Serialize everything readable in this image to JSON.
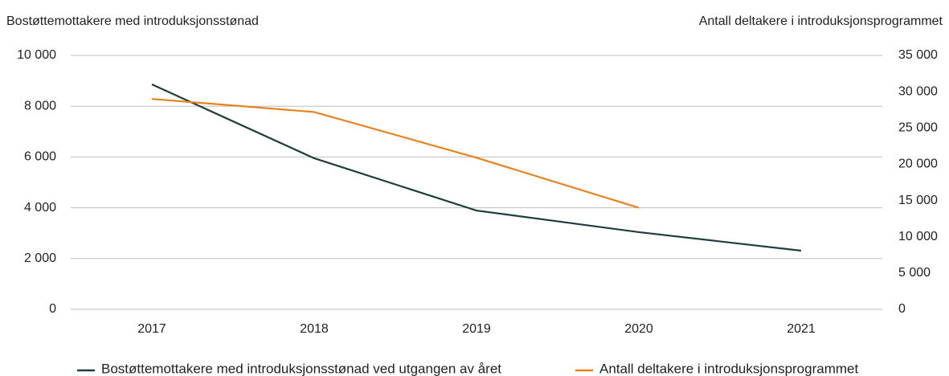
{
  "chart_data": {
    "type": "line",
    "y_label": "Bostøttemottakere med introduksjonsstønad",
    "y2_label": "Antall deltakere i introduksjonsprogrammet",
    "categories": [
      "2017",
      "2018",
      "2019",
      "2020",
      "2021"
    ],
    "series": [
      {
        "name": "Bostøttemottakere med introduksjonsstønad ved utgangen av året",
        "color": "#1e3f3b",
        "values": [
          8860,
          5950,
          3890,
          3040,
          2310
        ]
      },
      {
        "name": "Antall deltakere i introduksjonsprogrammet",
        "color": "#e8821e",
        "axis": "y2",
        "values": [
          29000,
          27200,
          20900,
          14000,
          null
        ]
      }
    ],
    "ylim": [
      0,
      10000
    ],
    "yticks": [
      0,
      {
        "value": 2000,
        "label": "2 000"
      },
      {
        "value": 4000,
        "label": "4 000"
      },
      {
        "value": 6000,
        "label": "6 000"
      },
      {
        "value": 8000,
        "label": "8 000"
      },
      {
        "value": 10000,
        "label": "10 000"
      }
    ],
    "y2lim": [
      0,
      35000
    ],
    "y2ticks": [
      0,
      {
        "value": 5000,
        "label": "5 000"
      },
      {
        "value": 10000,
        "label": "10 000"
      },
      {
        "value": 15000,
        "label": "15 000"
      },
      {
        "value": 20000,
        "label": "20 000"
      },
      {
        "value": 25000,
        "label": "25 000"
      },
      {
        "value": 30000,
        "label": "30 000"
      },
      {
        "value": 35000,
        "label": "35 000"
      }
    ],
    "grid": true,
    "legend": "bottom"
  }
}
